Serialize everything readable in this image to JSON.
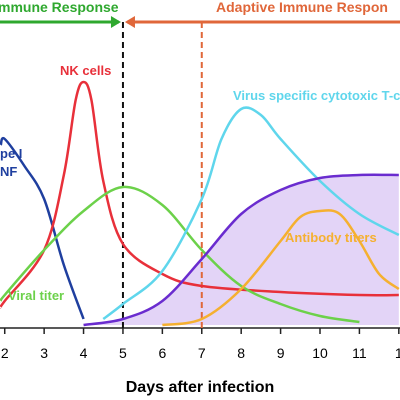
{
  "chart_data": {
    "type": "line",
    "x_label": "Days after infection",
    "xlim": [
      1.88,
      12.03
    ],
    "ylim": [
      0,
      100
    ],
    "xticks": [
      2,
      3,
      4,
      5,
      6,
      7,
      8,
      9,
      10,
      11,
      {
        "value": 12,
        "label": "1"
      }
    ],
    "vlines": [
      {
        "x": 5,
        "color": "#111111"
      },
      {
        "x": 7,
        "color": "#e0673a"
      }
    ],
    "annotations": [
      {
        "text": "mmune Response",
        "color": "#2fa82f"
      },
      {
        "text": "Adaptive Immune Respon",
        "color": "#e0673a"
      }
    ],
    "series": [
      {
        "label_lines": [
          "pe I",
          "NF"
        ],
        "color": "#1f3f9f",
        "x": [
          1.9,
          2,
          2.5,
          3,
          3.5,
          4
        ],
        "values": [
          60,
          62,
          53,
          42,
          20,
          2
        ]
      },
      {
        "name": "NK cells",
        "color": "#e8303a",
        "x": [
          1.9,
          2,
          3,
          3.5,
          3.8,
          4,
          4.2,
          4.5,
          5,
          6,
          7,
          9,
          11,
          12
        ],
        "values": [
          6,
          8,
          25,
          50,
          75,
          81,
          75,
          48,
          27,
          17,
          13,
          11,
          10,
          10
        ]
      },
      {
        "name": "Viral titer",
        "color": "#6cd14a",
        "x": [
          1.9,
          2,
          3,
          4,
          5,
          6,
          7,
          8,
          9,
          10,
          11
        ],
        "values": [
          8,
          10,
          25,
          38,
          46,
          40,
          25,
          13,
          7,
          3,
          1
        ]
      },
      {
        "name": "Virus specific cytotoxic T-c",
        "color": "#5fd6ec",
        "x": [
          4.5,
          5,
          6,
          7,
          7.5,
          8,
          8.5,
          9,
          10,
          11,
          12
        ],
        "values": [
          2,
          7,
          18,
          42,
          62,
          72,
          70,
          62,
          48,
          37,
          30
        ]
      },
      {
        "color": "#6a2ccf",
        "fill": "#e3d4f7",
        "x": [
          4,
          5,
          6,
          7,
          8,
          9,
          10,
          11,
          12
        ],
        "values": [
          0,
          2,
          8,
          22,
          37,
          45,
          49,
          50,
          50
        ]
      },
      {
        "name": "Antibody titers",
        "color": "#f5b030",
        "x": [
          6,
          7,
          8,
          9,
          9.5,
          10,
          10.5,
          11,
          11.5,
          12
        ],
        "values": [
          0,
          2,
          12,
          28,
          36,
          38,
          37,
          28,
          17,
          12
        ]
      }
    ]
  }
}
